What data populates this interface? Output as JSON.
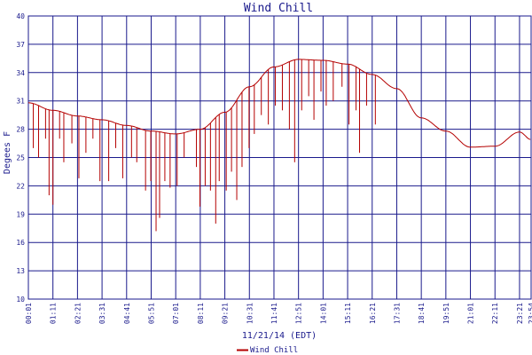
{
  "chart_data": {
    "type": "line",
    "title": "Wind Chill",
    "xlabel": "11/21/14 (EDT)",
    "ylabel": "Degees F",
    "x_tick_labels": [
      "00:01",
      "01:11",
      "02:21",
      "03:31",
      "04:41",
      "05:51",
      "07:01",
      "08:11",
      "09:21",
      "10:31",
      "11:41",
      "12:51",
      "14:01",
      "15:11",
      "16:21",
      "17:31",
      "18:41",
      "19:51",
      "21:01",
      "22:11",
      "23:21",
      "23:54"
    ],
    "y_tick_labels": [
      "10",
      "13",
      "16",
      "19",
      "22",
      "25",
      "28",
      "31",
      "34",
      "37",
      "40"
    ],
    "ylim": [
      10,
      40
    ],
    "grid": true,
    "legend_position": "bottom-left",
    "colors": {
      "series": "#b40000",
      "grid": "#1a1a8c",
      "text": "#1a1a8c"
    },
    "series": [
      {
        "name": "Wind Chill",
        "baseline": {
          "times": [
            "00:01",
            "01:11",
            "02:21",
            "03:31",
            "04:41",
            "05:51",
            "07:01",
            "08:11",
            "09:21",
            "10:31",
            "11:41",
            "12:51",
            "14:01",
            "15:11",
            "16:21",
            "17:31",
            "18:41",
            "19:51",
            "21:01",
            "22:11",
            "23:21",
            "23:54"
          ],
          "values": [
            30.8,
            30.0,
            29.4,
            29.0,
            28.4,
            27.8,
            27.5,
            28.0,
            29.8,
            32.5,
            34.6,
            35.4,
            35.3,
            34.9,
            33.8,
            32.3,
            29.2,
            27.8,
            26.1,
            26.2,
            27.7,
            26.9
          ]
        },
        "dips": [
          {
            "time": "00:15",
            "value": 26.0
          },
          {
            "time": "00:30",
            "value": 25.0
          },
          {
            "time": "00:50",
            "value": 27.0
          },
          {
            "time": "01:00",
            "value": 21.0
          },
          {
            "time": "01:11",
            "value": 20.0
          },
          {
            "time": "01:30",
            "value": 27.0
          },
          {
            "time": "01:42",
            "value": 24.5
          },
          {
            "time": "02:05",
            "value": 26.5
          },
          {
            "time": "02:25",
            "value": 22.8
          },
          {
            "time": "02:45",
            "value": 25.5
          },
          {
            "time": "03:05",
            "value": 27.0
          },
          {
            "time": "03:25",
            "value": 22.5
          },
          {
            "time": "03:50",
            "value": 22.5
          },
          {
            "time": "04:10",
            "value": 26.0
          },
          {
            "time": "04:30",
            "value": 22.8
          },
          {
            "time": "04:55",
            "value": 25.0
          },
          {
            "time": "05:10",
            "value": 24.5
          },
          {
            "time": "05:35",
            "value": 21.5
          },
          {
            "time": "05:50",
            "value": 22.5
          },
          {
            "time": "06:05",
            "value": 17.2
          },
          {
            "time": "06:15",
            "value": 18.6
          },
          {
            "time": "06:30",
            "value": 22.5
          },
          {
            "time": "06:45",
            "value": 21.8
          },
          {
            "time": "07:05",
            "value": 22.0
          },
          {
            "time": "07:25",
            "value": 25.0
          },
          {
            "time": "08:00",
            "value": 24.0
          },
          {
            "time": "08:10",
            "value": 19.8
          },
          {
            "time": "08:25",
            "value": 22.0
          },
          {
            "time": "08:40",
            "value": 21.5
          },
          {
            "time": "08:55",
            "value": 18.0
          },
          {
            "time": "09:05",
            "value": 22.5
          },
          {
            "time": "09:25",
            "value": 21.5
          },
          {
            "time": "09:40",
            "value": 23.5
          },
          {
            "time": "09:55",
            "value": 20.5
          },
          {
            "time": "10:10",
            "value": 24.0
          },
          {
            "time": "10:30",
            "value": 26.0
          },
          {
            "time": "10:45",
            "value": 27.5
          },
          {
            "time": "11:05",
            "value": 29.5
          },
          {
            "time": "11:25",
            "value": 28.5
          },
          {
            "time": "11:45",
            "value": 30.5
          },
          {
            "time": "12:05",
            "value": 30.0
          },
          {
            "time": "12:25",
            "value": 28.0
          },
          {
            "time": "12:40",
            "value": 24.5
          },
          {
            "time": "13:00",
            "value": 30.0
          },
          {
            "time": "13:20",
            "value": 31.5
          },
          {
            "time": "13:35",
            "value": 29.0
          },
          {
            "time": "13:55",
            "value": 32.0
          },
          {
            "time": "14:10",
            "value": 30.5
          },
          {
            "time": "14:30",
            "value": 31.0
          },
          {
            "time": "14:55",
            "value": 32.5
          },
          {
            "time": "15:15",
            "value": 28.5
          },
          {
            "time": "15:35",
            "value": 30.0
          },
          {
            "time": "15:45",
            "value": 25.5
          },
          {
            "time": "16:05",
            "value": 30.5
          },
          {
            "time": "16:30",
            "value": 28.5
          }
        ]
      }
    ]
  }
}
